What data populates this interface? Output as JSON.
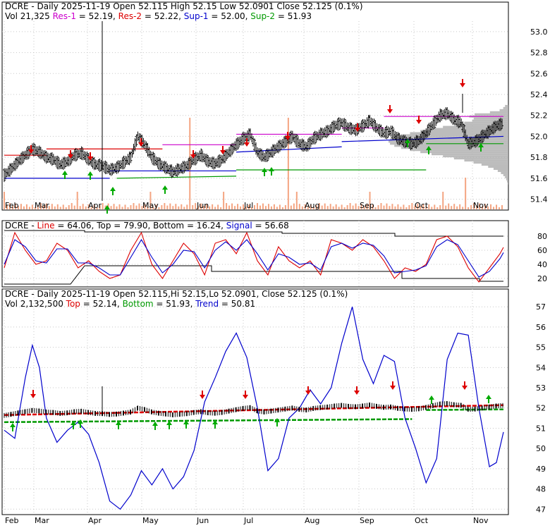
{
  "panels": {
    "price": {
      "header1": [
        {
          "text": "DCRE - Daily 2025-11-19 Open 52.115  High 52.15  Low 52.0901  Close 52.125 (0.1%)",
          "color": "#000000"
        }
      ],
      "header2": [
        {
          "text": "Vol 21,325 ",
          "color": "#000000"
        },
        {
          "text": "Res-1",
          "color": "#cc00cc"
        },
        {
          "text": " = 52.19, ",
          "color": "#000000"
        },
        {
          "text": "Res-2",
          "color": "#dd0000"
        },
        {
          "text": " = 52.22, ",
          "color": "#000000"
        },
        {
          "text": "Sup-1",
          "color": "#0000cc"
        },
        {
          "text": " = 52.00, ",
          "color": "#000000"
        },
        {
          "text": "Sup-2",
          "color": "#009900"
        },
        {
          "text": " = 51.93",
          "color": "#000000"
        }
      ],
      "y_ticks": [
        "53.0",
        "52.8",
        "52.6",
        "52.4",
        "52.2",
        "52.0",
        "51.8",
        "51.6",
        "51.4"
      ]
    },
    "stoch": {
      "header1": [
        {
          "text": "DCRE - ",
          "color": "#000000"
        },
        {
          "text": "Line",
          "color": "#dd0000"
        },
        {
          "text": " = 64.06, ",
          "color": "#000000"
        },
        {
          "text": "Top",
          "color": "#000000"
        },
        {
          "text": " = 79.90, ",
          "color": "#000000"
        },
        {
          "text": "Bottom",
          "color": "#000000"
        },
        {
          "text": " = 16.24, ",
          "color": "#000000"
        },
        {
          "text": "Signal",
          "color": "#0000cc"
        },
        {
          "text": " = 56.68",
          "color": "#000000"
        }
      ],
      "y_ticks": [
        "80",
        "60",
        "40",
        "20"
      ]
    },
    "trend": {
      "header1": [
        {
          "text": "DCRE - Daily 2025-11-19 Open 52.115,Hi 52.15,Lo 52.0901, Close 52.125 (0.1%)",
          "color": "#000000"
        }
      ],
      "header2": [
        {
          "text": "Vol 2,132,500 ",
          "color": "#000000"
        },
        {
          "text": "Top",
          "color": "#dd0000"
        },
        {
          "text": " = 52.14, ",
          "color": "#000000"
        },
        {
          "text": "Bottom",
          "color": "#009900"
        },
        {
          "text": " = 51.93, ",
          "color": "#000000"
        },
        {
          "text": "Trend",
          "color": "#0000cc"
        },
        {
          "text": " = 50.81",
          "color": "#000000"
        }
      ],
      "y_ticks": [
        "57",
        "56",
        "55",
        "54",
        "53",
        "52",
        "51",
        "50",
        "49",
        "48",
        "47"
      ]
    }
  },
  "months": [
    "Feb",
    "Mar",
    "Apr",
    "May",
    "Jun",
    "Jul",
    "Aug",
    "Sep",
    "Oct",
    "Nov"
  ],
  "colors": {
    "price_bar": "#000000",
    "res1": "#cc00cc",
    "res2": "#dd0000",
    "sup1": "#0000cc",
    "sup2": "#009900",
    "volume": "#f4a582",
    "volume_profile": "#b0b0b0",
    "arrow_up": "#00aa00",
    "arrow_down": "#dd0000",
    "stoch_line": "#dd0000",
    "stoch_signal": "#0000cc",
    "trend_line": "#0000cc"
  },
  "chart_data": [
    {
      "type": "line",
      "panel": "price",
      "title": "DCRE - Daily 2025-11-19 Open 52.115  High 52.15  Low 52.0901  Close 52.125 (0.1%)",
      "x_axis": "date (Feb - Nov 2025)",
      "ylim": [
        51.35,
        53.1
      ],
      "series": [
        {
          "name": "Close",
          "x": [
            0,
            10,
            20,
            30,
            40,
            50,
            60,
            70,
            80,
            90,
            100,
            110,
            120,
            130,
            140,
            150,
            160,
            170,
            180,
            190,
            200,
            210,
            220,
            230,
            240,
            250,
            260,
            270,
            280,
            290,
            300,
            310,
            320,
            330,
            340,
            350,
            360,
            370,
            380,
            390,
            400,
            410,
            420,
            430,
            440,
            450,
            460,
            470,
            480,
            490,
            500,
            510,
            520,
            530,
            540,
            550,
            560,
            570,
            580,
            590,
            600,
            610,
            620,
            630,
            640,
            650,
            660,
            670,
            680,
            690,
            700,
            710
          ],
          "values": [
            51.63,
            51.69,
            51.76,
            51.82,
            51.88,
            51.85,
            51.8,
            51.78,
            51.73,
            51.76,
            51.82,
            51.84,
            51.78,
            51.73,
            51.72,
            51.68,
            51.7,
            51.75,
            51.8,
            52.0,
            51.92,
            51.8,
            51.74,
            51.7,
            51.66,
            51.69,
            51.72,
            51.78,
            51.82,
            51.76,
            51.74,
            51.78,
            51.85,
            51.92,
            51.98,
            52.02,
            51.85,
            51.8,
            51.85,
            51.9,
            51.95,
            52.0,
            51.93,
            51.9,
            51.98,
            52.02,
            52.05,
            52.1,
            52.13,
            52.08,
            52.06,
            52.1,
            52.15,
            52.08,
            52.03,
            52.05,
            51.98,
            51.95,
            51.93,
            51.96,
            52.03,
            52.12,
            52.2,
            52.22,
            52.16,
            52.13,
            51.93,
            51.95,
            52.0,
            52.05,
            52.1,
            52.125
          ]
        }
      ],
      "levels": {
        "Res-1": 52.19,
        "Res-2": 52.22,
        "Sup-1": 52.0,
        "Sup-2": 51.93
      },
      "volume": "Vol 21,325"
    },
    {
      "type": "line",
      "panel": "stoch",
      "title": "DCRE - Line = 64.06, Top = 79.90, Bottom = 16.24, Signal = 56.68",
      "ylim": [
        10,
        95
      ],
      "series": [
        {
          "name": "Line",
          "x": [
            0,
            15,
            30,
            45,
            60,
            75,
            90,
            105,
            120,
            135,
            150,
            165,
            180,
            195,
            210,
            225,
            240,
            255,
            270,
            285,
            300,
            315,
            330,
            345,
            360,
            375,
            390,
            405,
            420,
            435,
            450,
            465,
            480,
            495,
            510,
            525,
            540,
            555,
            570,
            585,
            600,
            615,
            630,
            645,
            660,
            675,
            690,
            705,
            710
          ],
          "values": [
            35,
            85,
            60,
            40,
            45,
            70,
            60,
            35,
            45,
            30,
            20,
            25,
            60,
            85,
            40,
            20,
            45,
            70,
            55,
            25,
            70,
            75,
            55,
            85,
            45,
            25,
            65,
            45,
            35,
            45,
            25,
            75,
            70,
            60,
            75,
            65,
            45,
            20,
            35,
            30,
            40,
            75,
            80,
            65,
            35,
            15,
            35,
            55,
            64.06
          ]
        },
        {
          "name": "Signal",
          "x": [
            0,
            15,
            30,
            45,
            60,
            75,
            90,
            105,
            120,
            135,
            150,
            165,
            180,
            195,
            210,
            225,
            240,
            255,
            270,
            285,
            300,
            315,
            330,
            345,
            360,
            375,
            390,
            405,
            420,
            435,
            450,
            465,
            480,
            495,
            510,
            525,
            540,
            555,
            570,
            585,
            600,
            615,
            630,
            645,
            660,
            675,
            690,
            705,
            710
          ],
          "values": [
            40,
            75,
            65,
            45,
            42,
            62,
            62,
            42,
            42,
            35,
            25,
            25,
            50,
            75,
            50,
            28,
            40,
            60,
            58,
            35,
            60,
            72,
            60,
            75,
            55,
            32,
            55,
            50,
            40,
            42,
            32,
            65,
            70,
            63,
            70,
            67,
            52,
            28,
            30,
            32,
            38,
            65,
            75,
            68,
            45,
            22,
            30,
            48,
            56.68
          ]
        }
      ],
      "levels": {
        "Top": 79.9,
        "Bottom": 16.24
      }
    },
    {
      "type": "line",
      "panel": "trend",
      "title": "DCRE - Daily 2025-11-19 Open 52.115,Hi 52.15,Lo 52.0901, Close 52.125 (0.1%)",
      "ylim": [
        46.8,
        57.6
      ],
      "series": [
        {
          "name": "Trend",
          "x": [
            0,
            15,
            30,
            40,
            50,
            60,
            75,
            90,
            105,
            120,
            135,
            150,
            165,
            180,
            195,
            210,
            225,
            240,
            255,
            270,
            285,
            300,
            315,
            330,
            345,
            360,
            375,
            390,
            405,
            420,
            435,
            450,
            465,
            480,
            495,
            510,
            525,
            540,
            555,
            570,
            585,
            600,
            615,
            630,
            645,
            660,
            675,
            690,
            700,
            710
          ],
          "values": [
            50.9,
            50.5,
            53.5,
            55.1,
            54.0,
            51.5,
            50.3,
            50.9,
            51.3,
            50.7,
            49.3,
            47.4,
            47.0,
            47.7,
            48.9,
            48.2,
            49.0,
            48.0,
            48.6,
            49.9,
            52.3,
            53.5,
            54.8,
            55.7,
            54.5,
            52.0,
            48.9,
            49.5,
            51.5,
            52.0,
            52.9,
            52.2,
            53.0,
            55.2,
            57.0,
            54.4,
            53.2,
            54.6,
            54.3,
            51.5,
            50.0,
            48.3,
            49.5,
            54.4,
            55.7,
            55.6,
            52.0,
            49.1,
            49.3,
            50.81
          ]
        }
      ],
      "levels": {
        "Top": 52.14,
        "Bottom": 51.93,
        "Trend": 50.81
      },
      "volume": "Vol 2,132,500"
    }
  ]
}
